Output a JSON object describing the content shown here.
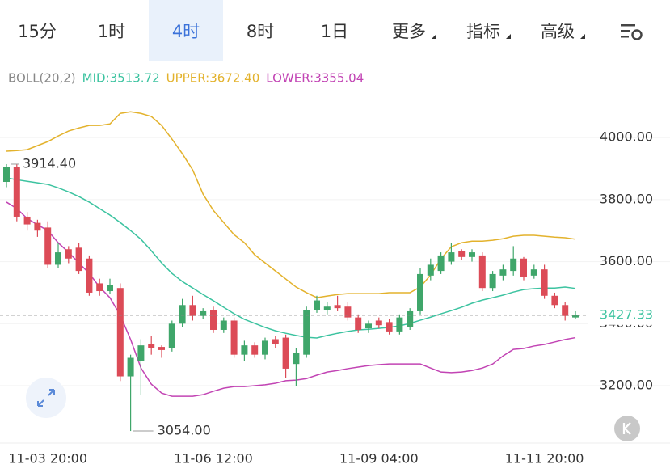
{
  "tabs": [
    {
      "label": "15分",
      "dropdown": false
    },
    {
      "label": "1时",
      "dropdown": false
    },
    {
      "label": "4时",
      "dropdown": false
    },
    {
      "label": "8时",
      "dropdown": false
    },
    {
      "label": "1日",
      "dropdown": false
    },
    {
      "label": "更多",
      "dropdown": true
    },
    {
      "label": "指标",
      "dropdown": true
    },
    {
      "label": "高级",
      "dropdown": true
    }
  ],
  "active_tab": 2,
  "chart_data": {
    "type": "candlestick",
    "indicator": "BOLL(20,2)",
    "up_color": "#3fa66a",
    "down_color": "#dc4b57",
    "categories": [
      null,
      null,
      null,
      null,
      "11-03 20:00",
      null,
      null,
      null,
      null,
      null,
      null,
      null,
      null,
      null,
      null,
      null,
      null,
      null,
      null,
      null,
      "11-06 12:00",
      null,
      null,
      null,
      null,
      null,
      null,
      null,
      null,
      null,
      null,
      null,
      null,
      null,
      null,
      null,
      "11-09 04:00",
      null,
      null,
      null,
      null,
      null,
      null,
      null,
      null,
      null,
      null,
      null,
      null,
      null,
      null,
      null,
      "11-11 20:00",
      null,
      null,
      null
    ],
    "open": [
      3857,
      3905,
      3745,
      3725,
      3710,
      3590,
      3640,
      3645,
      3610,
      3530,
      3505,
      3515,
      3230,
      3280,
      3335,
      3325,
      3320,
      3400,
      3460,
      3425,
      3445,
      3380,
      3410,
      3300,
      3330,
      3300,
      3350,
      3355,
      3270,
      3300,
      3445,
      3445,
      3460,
      3455,
      3420,
      3385,
      3410,
      3405,
      3375,
      3390,
      3440,
      3555,
      3570,
      3600,
      3635,
      3615,
      3620,
      3515,
      3555,
      3570,
      3610,
      3555,
      3575,
      3490,
      3460,
      3420
    ],
    "high": [
      3914.4,
      3914.4,
      3760,
      3735,
      3730,
      3660,
      3650,
      3660,
      3620,
      3545,
      3545,
      3530,
      3300,
      3350,
      3360,
      3330,
      3410,
      3480,
      3490,
      3450,
      3455,
      3420,
      3420,
      3345,
      3340,
      3355,
      3360,
      3365,
      3320,
      3455,
      3490,
      3470,
      3490,
      3470,
      3430,
      3410,
      3420,
      3415,
      3430,
      3450,
      3580,
      3610,
      3630,
      3660,
      3640,
      3640,
      3630,
      3570,
      3590,
      3650,
      3615,
      3590,
      3590,
      3500,
      3470,
      3440
    ],
    "low": [
      3840,
      3730,
      3700,
      3680,
      3580,
      3580,
      3595,
      3560,
      3490,
      3490,
      3495,
      3215,
      3054,
      3170,
      3300,
      3290,
      3310,
      3390,
      3410,
      3415,
      3370,
      3370,
      3290,
      3280,
      3290,
      3285,
      3320,
      3225,
      3200,
      3290,
      3435,
      3430,
      3440,
      3410,
      3370,
      3370,
      3385,
      3365,
      3365,
      3380,
      3430,
      3540,
      3560,
      3590,
      3605,
      3600,
      3505,
      3505,
      3540,
      3555,
      3540,
      3545,
      3480,
      3450,
      3410,
      3415
    ],
    "close": [
      3905,
      3745,
      3720,
      3700,
      3590,
      3630,
      3610,
      3570,
      3500,
      3505,
      3525,
      3230,
      3290,
      3330,
      3320,
      3315,
      3400,
      3460,
      3425,
      3440,
      3380,
      3410,
      3300,
      3330,
      3300,
      3345,
      3335,
      3255,
      3305,
      3445,
      3475,
      3455,
      3450,
      3420,
      3380,
      3400,
      3395,
      3375,
      3420,
      3440,
      3560,
      3590,
      3620,
      3630,
      3615,
      3630,
      3515,
      3560,
      3575,
      3610,
      3550,
      3575,
      3490,
      3460,
      3425,
      3427.33
    ],
    "bands": [
      {
        "label": "MID:3513.72",
        "color": "#3cc3a0",
        "values": [
          3870,
          3864,
          3859,
          3854,
          3849,
          3838,
          3825,
          3810,
          3792,
          3771,
          3750,
          3726,
          3700,
          3672,
          3635,
          3596,
          3562,
          3536,
          3515,
          3494,
          3474,
          3453,
          3432,
          3414,
          3401,
          3388,
          3377,
          3369,
          3362,
          3356,
          3354,
          3362,
          3369,
          3375,
          3380,
          3382,
          3385,
          3388,
          3393,
          3401,
          3411,
          3421,
          3432,
          3442,
          3453,
          3466,
          3476,
          3484,
          3492,
          3502,
          3510,
          3513,
          3515,
          3515,
          3518,
          3513.72
        ]
      },
      {
        "label": "UPPER:3672.40",
        "color": "#e3b22c",
        "values": [
          3956,
          3958,
          3961,
          3974,
          3987,
          4005,
          4021,
          4031,
          4039,
          4039,
          4044,
          4078,
          4083,
          4078,
          4068,
          4039,
          3995,
          3948,
          3896,
          3818,
          3765,
          3726,
          3687,
          3661,
          3622,
          3596,
          3570,
          3544,
          3518,
          3500,
          3484,
          3489,
          3494,
          3497,
          3497,
          3497,
          3497,
          3500,
          3500,
          3500,
          3518,
          3557,
          3609,
          3648,
          3661,
          3666,
          3666,
          3669,
          3674,
          3682,
          3685,
          3685,
          3682,
          3679,
          3677,
          3672.4
        ]
      },
      {
        "label": "LOWER:3355.04",
        "color": "#c244b4",
        "values": [
          3792,
          3771,
          3739,
          3719,
          3700,
          3661,
          3630,
          3596,
          3562,
          3518,
          3484,
          3427,
          3349,
          3257,
          3205,
          3176,
          3166,
          3166,
          3166,
          3171,
          3182,
          3192,
          3197,
          3197,
          3200,
          3203,
          3208,
          3216,
          3218,
          3223,
          3234,
          3244,
          3249,
          3255,
          3260,
          3265,
          3268,
          3270,
          3270,
          3270,
          3270,
          3257,
          3244,
          3242,
          3244,
          3249,
          3257,
          3270,
          3296,
          3317,
          3320,
          3328,
          3333,
          3341,
          3349,
          3355.04
        ]
      }
    ],
    "ylim": [
      3015,
      4235
    ],
    "yticks": [
      {
        "value": 3200,
        "label": "3200.00"
      },
      {
        "value": 3400,
        "label": "3400.00"
      },
      {
        "value": 3600,
        "label": "3600.00"
      },
      {
        "value": 3800,
        "label": "3800.00"
      },
      {
        "value": 4000,
        "label": "4000.00"
      }
    ],
    "grid": true,
    "high_label": {
      "value": 3914.4,
      "label": "3914.40"
    },
    "low_label": {
      "value": 3054,
      "label": "3054.00"
    },
    "last_price": {
      "value": 3427.33,
      "label": "3427.33"
    }
  }
}
